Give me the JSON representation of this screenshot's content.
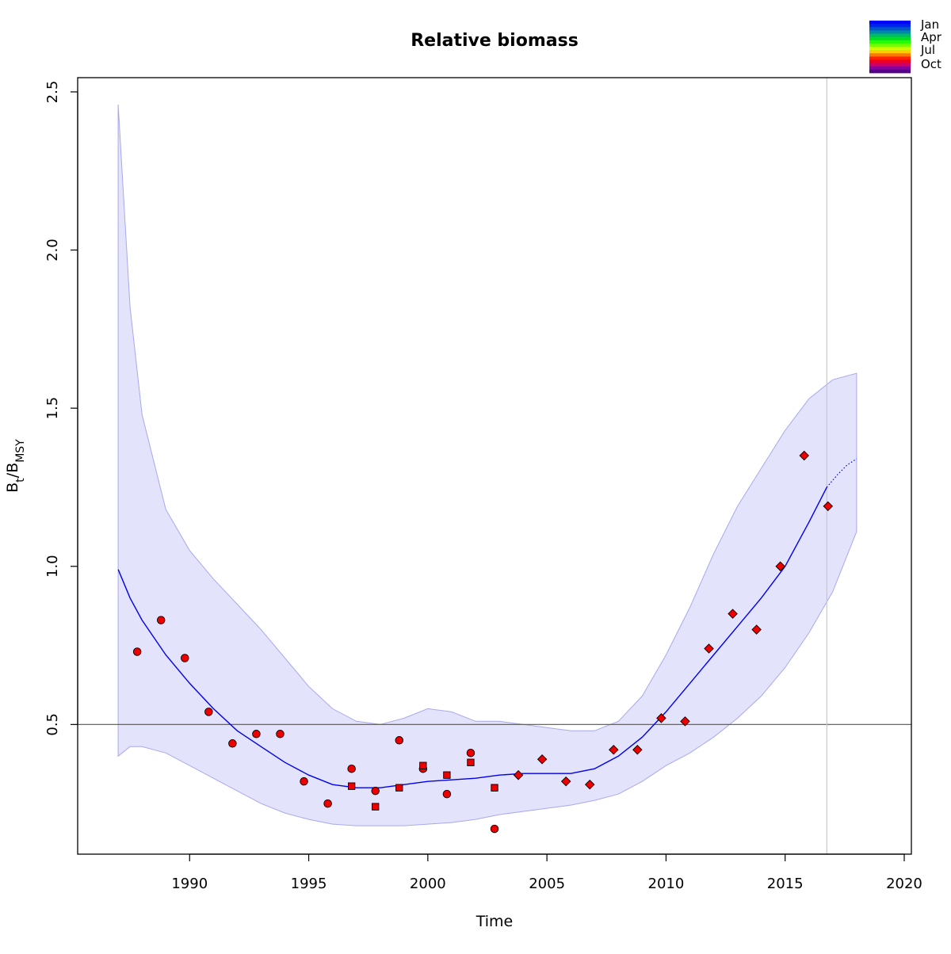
{
  "chart_data": {
    "type": "scatter",
    "title": "Relative biomass",
    "xlabel": "Time",
    "ylabel": {
      "main": "B",
      "sub1": "t",
      "sep": "/B",
      "sub2": "MSY"
    },
    "xlim": [
      1985.3,
      2020.3
    ],
    "ylim": [
      0.09,
      2.545
    ],
    "xticks": [
      1990,
      1995,
      2000,
      2005,
      2010,
      2015,
      2020
    ],
    "yticks": [
      0.5,
      1.0,
      1.5,
      2.0,
      2.5
    ],
    "ytick_labels": [
      "0.5",
      "1.0",
      "1.5",
      "2.0",
      "2.5"
    ],
    "reference_line_y": 0.5,
    "vertical_line_x": 2016.75,
    "grid": false,
    "colors": {
      "band_fill": "#e3e3fc",
      "band_edge": "#a8a8f0",
      "fit_line": "#0000ee",
      "points": "#ee0000",
      "ref_line": "#555555",
      "vline": "#c8c8c8"
    },
    "fit": {
      "x": [
        1987.0,
        1987.5,
        1988.0,
        1989.0,
        1990.0,
        1991.0,
        1992.0,
        1993.0,
        1994.0,
        1995.0,
        1996.0,
        1997.0,
        1998.0,
        1999.0,
        2000.0,
        2001.0,
        2002.0,
        2003.0,
        2004.0,
        2005.0,
        2006.0,
        2007.0,
        2008.0,
        2009.0,
        2010.0,
        2011.0,
        2012.0,
        2013.0,
        2014.0,
        2015.0,
        2016.0,
        2016.75
      ],
      "y": [
        0.99,
        0.9,
        0.83,
        0.72,
        0.63,
        0.55,
        0.48,
        0.43,
        0.38,
        0.34,
        0.31,
        0.3,
        0.3,
        0.31,
        0.32,
        0.325,
        0.33,
        0.34,
        0.345,
        0.345,
        0.345,
        0.36,
        0.4,
        0.46,
        0.54,
        0.63,
        0.72,
        0.81,
        0.9,
        1.0,
        1.14,
        1.25
      ]
    },
    "forecast": {
      "x": [
        2016.75,
        2017.2,
        2017.6,
        2018.0
      ],
      "y": [
        1.25,
        1.29,
        1.32,
        1.34
      ]
    },
    "band": {
      "x": [
        1987.0,
        1987.5,
        1988.0,
        1989.0,
        1990.0,
        1991.0,
        1992.0,
        1993.0,
        1994.0,
        1995.0,
        1996.0,
        1997.0,
        1998.0,
        1999.0,
        2000.0,
        2001.0,
        2002.0,
        2003.0,
        2004.0,
        2005.0,
        2006.0,
        2007.0,
        2008.0,
        2009.0,
        2010.0,
        2011.0,
        2012.0,
        2013.0,
        2014.0,
        2015.0,
        2016.0,
        2017.0,
        2018.0
      ],
      "upper": [
        2.46,
        1.82,
        1.48,
        1.18,
        1.05,
        0.96,
        0.88,
        0.8,
        0.71,
        0.62,
        0.55,
        0.51,
        0.5,
        0.52,
        0.55,
        0.54,
        0.51,
        0.51,
        0.5,
        0.49,
        0.48,
        0.48,
        0.51,
        0.59,
        0.72,
        0.87,
        1.04,
        1.19,
        1.31,
        1.43,
        1.53,
        1.59,
        1.61
      ],
      "lower": [
        0.4,
        0.43,
        0.43,
        0.41,
        0.37,
        0.33,
        0.29,
        0.25,
        0.22,
        0.2,
        0.185,
        0.18,
        0.18,
        0.18,
        0.185,
        0.19,
        0.2,
        0.215,
        0.225,
        0.235,
        0.245,
        0.26,
        0.28,
        0.32,
        0.37,
        0.41,
        0.46,
        0.52,
        0.59,
        0.68,
        0.79,
        0.92,
        1.11
      ]
    },
    "series": [
      {
        "marker": "circle",
        "x": [
          1987.8,
          1988.8,
          1989.8,
          1990.8,
          1991.8,
          1992.8,
          1993.8,
          1994.8,
          1995.8,
          1996.8,
          1997.8,
          1998.8,
          1999.8,
          2000.8,
          2001.8,
          2002.8
        ],
        "y": [
          0.73,
          0.83,
          0.71,
          0.54,
          0.44,
          0.47,
          0.47,
          0.32,
          0.25,
          0.36,
          0.29,
          0.45,
          0.36,
          0.28,
          0.41,
          0.17
        ]
      },
      {
        "marker": "square",
        "x": [
          1996.8,
          1997.8,
          1998.8,
          1999.8,
          2000.8,
          2001.8,
          2002.8
        ],
        "y": [
          0.305,
          0.24,
          0.3,
          0.37,
          0.34,
          0.38,
          0.3
        ]
      },
      {
        "marker": "diamond",
        "x": [
          2003.8,
          2004.8,
          2005.8,
          2006.8,
          2007.8,
          2008.8,
          2009.8,
          2010.8,
          2011.8,
          2012.8,
          2013.8,
          2014.8,
          2015.8,
          2016.8
        ],
        "y": [
          0.34,
          0.39,
          0.32,
          0.31,
          0.42,
          0.42,
          0.52,
          0.51,
          0.74,
          0.85,
          0.8,
          1.0,
          1.35,
          1.19
        ]
      }
    ],
    "legend": {
      "position": "top-right",
      "labels": [
        "Jan",
        "Apr",
        "Jul",
        "Oct"
      ],
      "colors": [
        "#0000ff",
        "#0022ee",
        "#0055cc",
        "#0088aa",
        "#00bb66",
        "#00dd22",
        "#22ff00",
        "#77ff00",
        "#ccff00",
        "#ffcc00",
        "#ff7700",
        "#ff2200",
        "#ee0022",
        "#cc0066",
        "#880099",
        "#550088"
      ]
    }
  }
}
